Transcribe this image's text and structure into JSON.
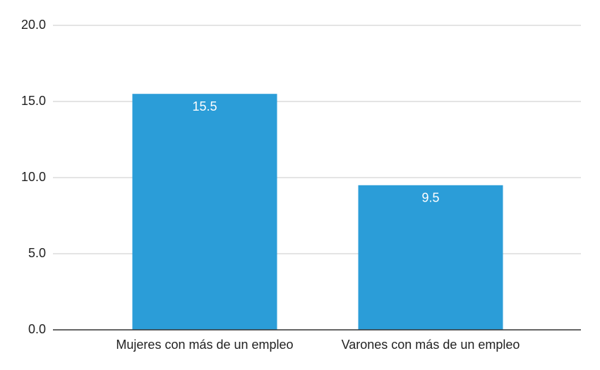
{
  "chart_data": {
    "type": "bar",
    "categories": [
      "Mujeres con más de un empleo",
      "Varones con más de un empleo"
    ],
    "values": [
      15.5,
      9.5
    ],
    "color": "#2b9dd8",
    "ylim": [
      0,
      20
    ],
    "yticks": [
      {
        "value": 0,
        "label": "0.0"
      },
      {
        "value": 5,
        "label": "5.0"
      },
      {
        "value": 10,
        "label": "10.0"
      },
      {
        "value": 15,
        "label": "15.0"
      },
      {
        "value": 20,
        "label": "20.0"
      }
    ],
    "grid": true
  }
}
